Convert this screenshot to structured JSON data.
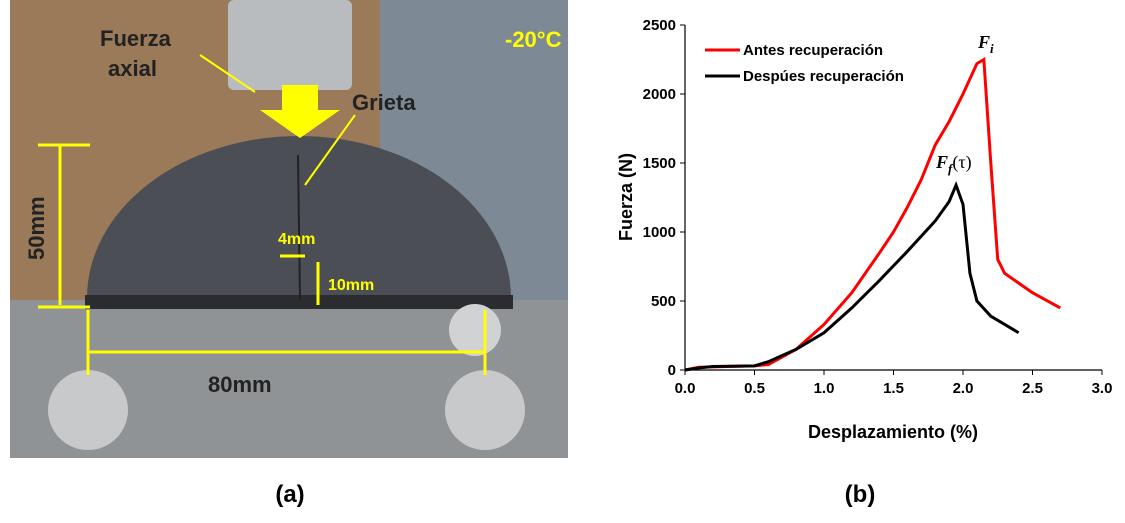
{
  "photo": {
    "labels": [
      "Fuerza",
      "axial",
      "-20°C",
      "Grieta",
      "50mm",
      "4mm",
      "10mm",
      "80mm"
    ]
  },
  "panel_labels": [
    "(a)",
    "(b)"
  ],
  "chart_data": {
    "type": "line",
    "xlabel": "Desplazamiento (%)",
    "ylabel": "Fuerza (N)",
    "xlim": [
      0,
      3
    ],
    "ylim": [
      0,
      2500
    ],
    "xticks": [
      {
        "value": 0,
        "label": "0.0"
      },
      0.5,
      {
        "value": 1,
        "label": "1.0"
      },
      1.5,
      {
        "value": 2,
        "label": "2.0"
      },
      2.5,
      {
        "value": 3,
        "label": "3.0"
      }
    ],
    "yticks": [
      0,
      500,
      1000,
      1500,
      2000,
      2500
    ],
    "grid": false,
    "legend": "upper left",
    "series": [
      {
        "name": "Antes recuperación",
        "color": "#ff0000",
        "x": [
          0,
          0.1,
          0.3,
          0.5,
          0.6,
          0.8,
          1.0,
          1.2,
          1.4,
          1.5,
          1.6,
          1.7,
          1.8,
          1.9,
          2.0,
          2.1,
          2.15,
          2.2,
          2.25,
          2.3,
          2.5,
          2.7
        ],
        "values": [
          0,
          20,
          25,
          30,
          40,
          150,
          330,
          560,
          850,
          1000,
          1180,
          1380,
          1630,
          1800,
          2000,
          2220,
          2250,
          1500,
          800,
          700,
          560,
          450
        ]
      },
      {
        "name": "Despúes recuperación",
        "color": "#000000",
        "x": [
          0,
          0.1,
          0.2,
          0.5,
          0.6,
          0.8,
          1.0,
          1.2,
          1.4,
          1.6,
          1.8,
          1.9,
          1.95,
          2.0,
          2.05,
          2.1,
          2.2,
          2.4
        ],
        "values": [
          0,
          15,
          25,
          30,
          60,
          150,
          270,
          450,
          650,
          860,
          1080,
          1220,
          1340,
          1200,
          700,
          500,
          390,
          270
        ]
      }
    ],
    "annotations": [
      {
        "text": "F",
        "sub": "i"
      },
      {
        "text": "F",
        "sub": "f",
        "suffix": "(τ)"
      }
    ]
  }
}
